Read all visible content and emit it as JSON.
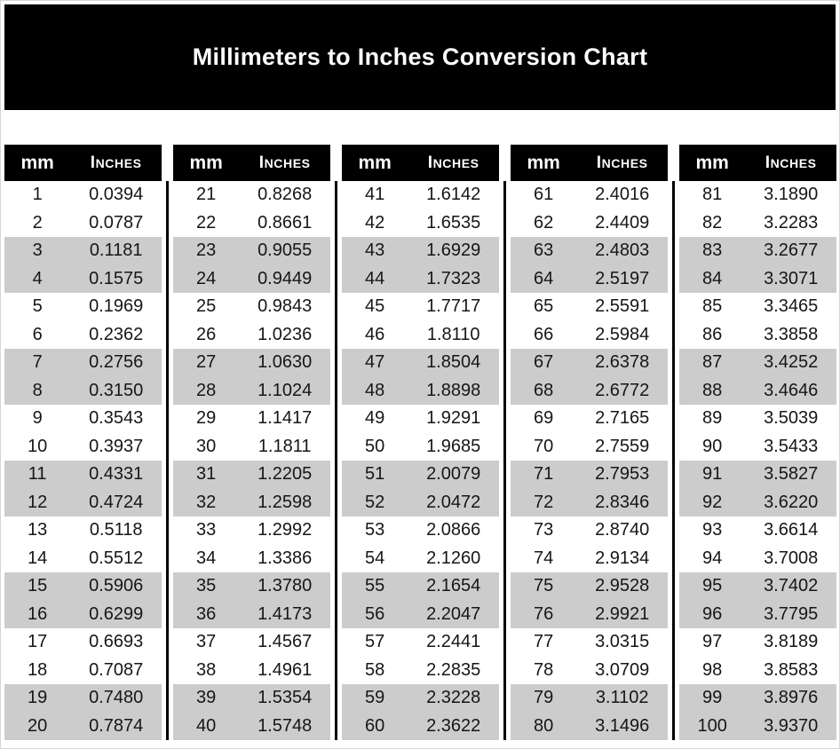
{
  "title": "Millimeters to Inches Conversion Chart",
  "colors": {
    "banner_background": "#000000",
    "column_header_background": "#000000",
    "header_text": "#ffffff",
    "row_stripe": "#cccccc",
    "body_text": "#161616"
  },
  "chart_data": {
    "type": "table",
    "title": "Millimeters to Inches Conversion Chart",
    "column_headers": [
      "mm",
      "Inches"
    ],
    "layout": {
      "column_blocks": 5,
      "rows_per_block": 20,
      "row_shading": "alternating pairs (2 white, 2 gray)",
      "dividers": "vertical black rules between column blocks"
    },
    "columns": [
      {
        "rows": [
          [
            "1",
            "0.0394"
          ],
          [
            "2",
            "0.0787"
          ],
          [
            "3",
            "0.1181"
          ],
          [
            "4",
            "0.1575"
          ],
          [
            "5",
            "0.1969"
          ],
          [
            "6",
            "0.2362"
          ],
          [
            "7",
            "0.2756"
          ],
          [
            "8",
            "0.3150"
          ],
          [
            "9",
            "0.3543"
          ],
          [
            "10",
            "0.3937"
          ],
          [
            "11",
            "0.4331"
          ],
          [
            "12",
            "0.4724"
          ],
          [
            "13",
            "0.5118"
          ],
          [
            "14",
            "0.5512"
          ],
          [
            "15",
            "0.5906"
          ],
          [
            "16",
            "0.6299"
          ],
          [
            "17",
            "0.6693"
          ],
          [
            "18",
            "0.7087"
          ],
          [
            "19",
            "0.7480"
          ],
          [
            "20",
            "0.7874"
          ]
        ]
      },
      {
        "rows": [
          [
            "21",
            "0.8268"
          ],
          [
            "22",
            "0.8661"
          ],
          [
            "23",
            "0.9055"
          ],
          [
            "24",
            "0.9449"
          ],
          [
            "25",
            "0.9843"
          ],
          [
            "26",
            "1.0236"
          ],
          [
            "27",
            "1.0630"
          ],
          [
            "28",
            "1.1024"
          ],
          [
            "29",
            "1.1417"
          ],
          [
            "30",
            "1.1811"
          ],
          [
            "31",
            "1.2205"
          ],
          [
            "32",
            "1.2598"
          ],
          [
            "33",
            "1.2992"
          ],
          [
            "34",
            "1.3386"
          ],
          [
            "35",
            "1.3780"
          ],
          [
            "36",
            "1.4173"
          ],
          [
            "37",
            "1.4567"
          ],
          [
            "38",
            "1.4961"
          ],
          [
            "39",
            "1.5354"
          ],
          [
            "40",
            "1.5748"
          ]
        ]
      },
      {
        "rows": [
          [
            "41",
            "1.6142"
          ],
          [
            "42",
            "1.6535"
          ],
          [
            "43",
            "1.6929"
          ],
          [
            "44",
            "1.7323"
          ],
          [
            "45",
            "1.7717"
          ],
          [
            "46",
            "1.8110"
          ],
          [
            "47",
            "1.8504"
          ],
          [
            "48",
            "1.8898"
          ],
          [
            "49",
            "1.9291"
          ],
          [
            "50",
            "1.9685"
          ],
          [
            "51",
            "2.0079"
          ],
          [
            "52",
            "2.0472"
          ],
          [
            "53",
            "2.0866"
          ],
          [
            "54",
            "2.1260"
          ],
          [
            "55",
            "2.1654"
          ],
          [
            "56",
            "2.2047"
          ],
          [
            "57",
            "2.2441"
          ],
          [
            "58",
            "2.2835"
          ],
          [
            "59",
            "2.3228"
          ],
          [
            "60",
            "2.3622"
          ]
        ]
      },
      {
        "rows": [
          [
            "61",
            "2.4016"
          ],
          [
            "62",
            "2.4409"
          ],
          [
            "63",
            "2.4803"
          ],
          [
            "64",
            "2.5197"
          ],
          [
            "65",
            "2.5591"
          ],
          [
            "66",
            "2.5984"
          ],
          [
            "67",
            "2.6378"
          ],
          [
            "68",
            "2.6772"
          ],
          [
            "69",
            "2.7165"
          ],
          [
            "70",
            "2.7559"
          ],
          [
            "71",
            "2.7953"
          ],
          [
            "72",
            "2.8346"
          ],
          [
            "73",
            "2.8740"
          ],
          [
            "74",
            "2.9134"
          ],
          [
            "75",
            "2.9528"
          ],
          [
            "76",
            "2.9921"
          ],
          [
            "77",
            "3.0315"
          ],
          [
            "78",
            "3.0709"
          ],
          [
            "79",
            "3.1102"
          ],
          [
            "80",
            "3.1496"
          ]
        ]
      },
      {
        "rows": [
          [
            "81",
            "3.1890"
          ],
          [
            "82",
            "3.2283"
          ],
          [
            "83",
            "3.2677"
          ],
          [
            "84",
            "3.3071"
          ],
          [
            "85",
            "3.3465"
          ],
          [
            "86",
            "3.3858"
          ],
          [
            "87",
            "3.4252"
          ],
          [
            "88",
            "3.4646"
          ],
          [
            "89",
            "3.5039"
          ],
          [
            "90",
            "3.5433"
          ],
          [
            "91",
            "3.5827"
          ],
          [
            "92",
            "3.6220"
          ],
          [
            "93",
            "3.6614"
          ],
          [
            "94",
            "3.7008"
          ],
          [
            "95",
            "3.7402"
          ],
          [
            "96",
            "3.7795"
          ],
          [
            "97",
            "3.8189"
          ],
          [
            "98",
            "3.8583"
          ],
          [
            "99",
            "3.8976"
          ],
          [
            "100",
            "3.9370"
          ]
        ]
      }
    ]
  }
}
